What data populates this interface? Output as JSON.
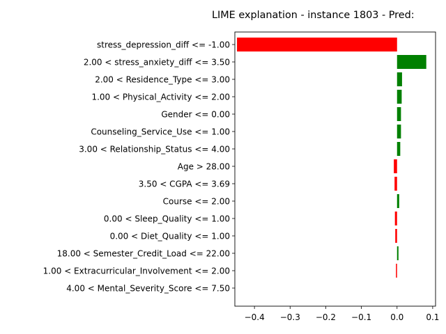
{
  "chart_data": {
    "type": "bar",
    "orientation": "horizontal",
    "title": "LIME explanation - instance 1803 - Pred:",
    "xlabel": "",
    "ylabel": "",
    "xlim": [
      -0.455,
      0.108
    ],
    "xticks": [
      -0.4,
      -0.3,
      -0.2,
      -0.1,
      0.0,
      0.1
    ],
    "xtick_labels": [
      "−0.4",
      "−0.3",
      "−0.2",
      "−0.1",
      "0.0",
      "0.1"
    ],
    "grid": false,
    "positive_color": "#008000",
    "negative_color": "#ff0000",
    "categories": [
      "stress_depression_diff <= -1.00",
      "2.00 < stress_anxiety_diff <= 3.50",
      "2.00 < Residence_Type <= 3.00",
      "1.00 < Physical_Activity <= 2.00",
      "Gender <= 0.00",
      "Counseling_Service_Use <= 1.00",
      "3.00 < Relationship_Status <= 4.00",
      "Age > 28.00",
      "3.50 < CGPA <= 3.69",
      "Course <= 2.00",
      "0.00 < Sleep_Quality <= 1.00",
      "0.00 < Diet_Quality <= 1.00",
      "18.00 < Semester_Credit_Load <= 22.00",
      "1.00 < Extracurricular_Involvement <= 2.00",
      "4.00 < Mental_Severity_Score <= 7.50"
    ],
    "values": [
      -0.449,
      0.082,
      0.014,
      0.013,
      0.011,
      0.011,
      0.009,
      -0.009,
      -0.007,
      0.006,
      -0.006,
      -0.005,
      0.004,
      -0.003,
      0.0
    ]
  }
}
